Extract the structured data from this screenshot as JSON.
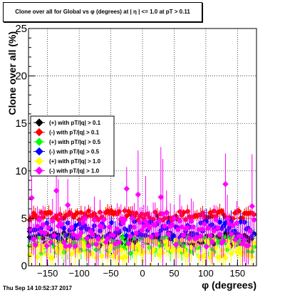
{
  "title": "Clone  over all for Global vs φ (degrees) at | η | <= 1.0 at pT > 0.11",
  "footer": "Thu Sep 14 10:52:37 2017",
  "chart_data": {
    "type": "scatter",
    "title": "Clone  over all for Global vs φ (degrees) at | η | <= 1.0 at pT > 0.11",
    "xlabel": "φ (degrees)",
    "ylabel": "Clone  over all (%)",
    "xlim": [
      -180,
      180
    ],
    "ylim": [
      0,
      25
    ],
    "x_ticks": [
      -150,
      -100,
      -50,
      0,
      50,
      100,
      150
    ],
    "y_ticks": [
      0,
      5,
      10,
      15,
      20,
      25
    ],
    "grid": true,
    "legend_position": "middle-left",
    "series": [
      {
        "name": "(+) with pT/|q| > 0.1",
        "color": "#000000",
        "marker": "diamond",
        "level": 2.8,
        "spread": 0.7,
        "err": 0.9
      },
      {
        "name": "(-) with pT/|q| > 0.1",
        "color": "#ff0000",
        "marker": "diamond",
        "level": 5.3,
        "spread": 0.5,
        "err": 0.6
      },
      {
        "name": "(+) with pT/|q| > 0.5",
        "color": "#00ff00",
        "marker": "diamond",
        "level": 2.2,
        "spread": 0.9,
        "err": 1.0
      },
      {
        "name": "(-) with pT/|q| > 0.5",
        "color": "#0000ff",
        "marker": "diamond",
        "level": 3.8,
        "spread": 0.9,
        "err": 1.0
      },
      {
        "name": "(+) with pT/|q| > 1.0",
        "color": "#ffff00",
        "marker": "diamond",
        "level": 1.8,
        "spread": 1.0,
        "err": 1.2
      },
      {
        "name": "(-) with pT/|q| > 1.0",
        "color": "#ff00ff",
        "marker": "diamond",
        "level": 3.5,
        "spread": 1.5,
        "err": 2.0
      }
    ]
  }
}
